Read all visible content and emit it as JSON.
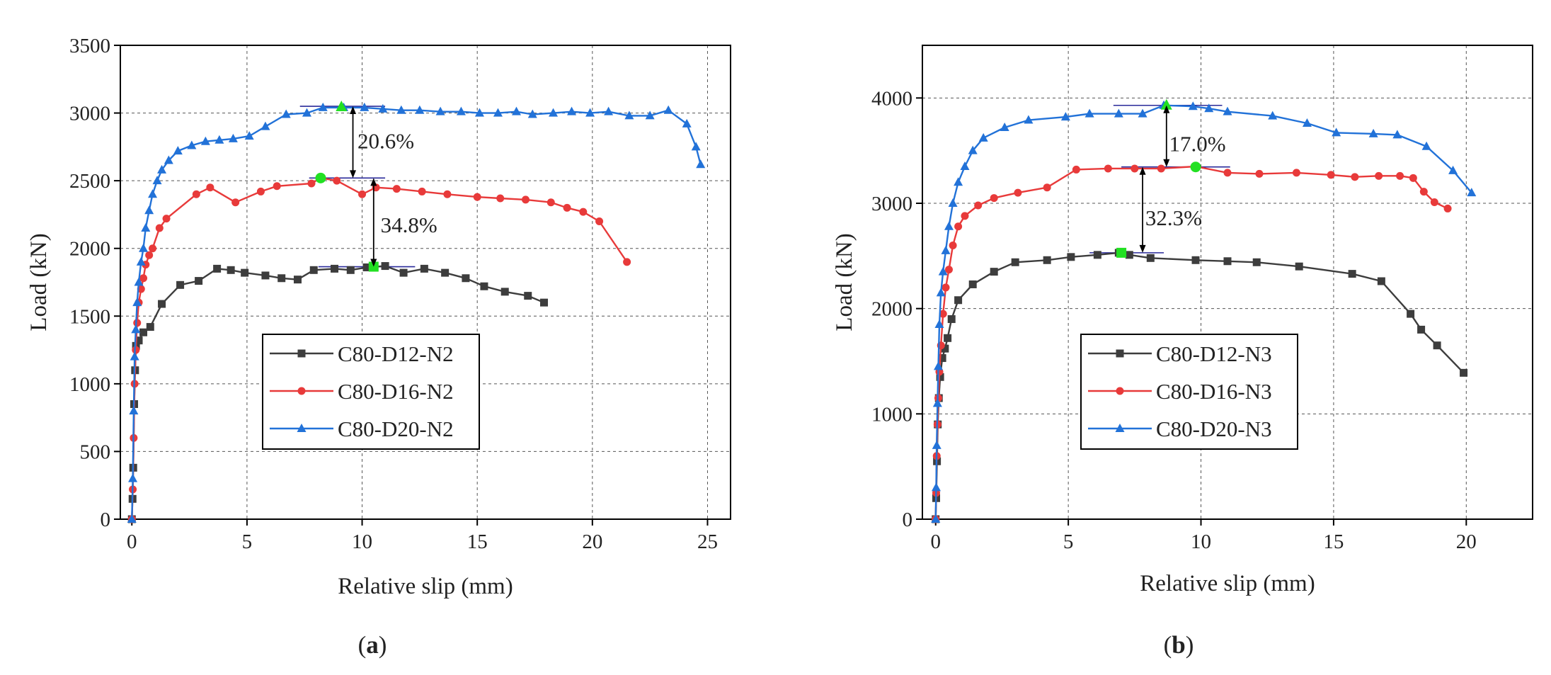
{
  "chart_data": [
    {
      "type": "line",
      "panel_label": "a",
      "xlabel": "Relative slip (mm)",
      "ylabel": "Load (kN)",
      "xlim": [
        -0.5,
        26
      ],
      "ylim": [
        0,
        3500
      ],
      "xticks": [
        0,
        5,
        10,
        15,
        20,
        25
      ],
      "yticks": [
        0,
        500,
        1000,
        1500,
        2000,
        2500,
        3000,
        3500
      ],
      "grid": true,
      "legend_position": "center-left",
      "series": [
        {
          "name": "C80-D12-N2",
          "color": "#3d3d3d",
          "marker": "square",
          "x": [
            0,
            0.03,
            0.06,
            0.1,
            0.14,
            0.18,
            0.3,
            0.5,
            0.8,
            1.3,
            2.1,
            2.9,
            3.7,
            4.3,
            4.9,
            5.8,
            6.5,
            7.2,
            7.9,
            8.8,
            9.5,
            10.2,
            11,
            11.8,
            12.7,
            13.6,
            14.5,
            15.3,
            16.2,
            17.2,
            17.9
          ],
          "y": [
            0,
            150,
            380,
            850,
            1100,
            1280,
            1320,
            1380,
            1420,
            1590,
            1730,
            1760,
            1850,
            1840,
            1820,
            1800,
            1780,
            1770,
            1840,
            1850,
            1840,
            1860,
            1870,
            1820,
            1850,
            1820,
            1780,
            1720,
            1680,
            1650,
            1600
          ]
        },
        {
          "name": "C80-D16-N2",
          "color": "#e83a3a",
          "marker": "circle",
          "x": [
            0,
            0.04,
            0.08,
            0.12,
            0.17,
            0.23,
            0.3,
            0.4,
            0.5,
            0.6,
            0.75,
            0.9,
            1.2,
            1.5,
            2.8,
            3.4,
            4.5,
            5.6,
            6.3,
            7.8,
            8.2,
            8.9,
            10,
            10.6,
            11.5,
            12.6,
            13.7,
            15,
            16,
            17.1,
            18.2,
            18.9,
            19.6,
            20.3,
            21.5
          ],
          "y": [
            0,
            220,
            600,
            1000,
            1250,
            1450,
            1600,
            1700,
            1780,
            1880,
            1950,
            2000,
            2150,
            2220,
            2400,
            2450,
            2340,
            2420,
            2460,
            2480,
            2520,
            2500,
            2400,
            2450,
            2440,
            2420,
            2400,
            2380,
            2370,
            2360,
            2340,
            2300,
            2270,
            2200,
            1900
          ]
        },
        {
          "name": "C80-D20-N2",
          "color": "#2272d8",
          "marker": "triangle",
          "x": [
            0,
            0.04,
            0.08,
            0.12,
            0.17,
            0.23,
            0.3,
            0.4,
            0.5,
            0.6,
            0.75,
            0.9,
            1.1,
            1.3,
            1.6,
            2,
            2.6,
            3.2,
            3.8,
            4.4,
            5.1,
            5.8,
            6.7,
            7.6,
            8.3,
            9.2,
            10.1,
            10.9,
            11.7,
            12.5,
            13.4,
            14.3,
            15.1,
            15.9,
            16.7,
            17.4,
            18.3,
            19.1,
            19.9,
            20.7,
            21.6,
            22.5,
            23.3,
            24.1,
            24.5,
            24.7
          ],
          "y": [
            0,
            300,
            800,
            1200,
            1400,
            1600,
            1750,
            1900,
            2000,
            2150,
            2280,
            2400,
            2500,
            2580,
            2650,
            2720,
            2760,
            2790,
            2800,
            2810,
            2830,
            2900,
            2990,
            3000,
            3040,
            3040,
            3040,
            3030,
            3020,
            3020,
            3010,
            3010,
            3000,
            3000,
            3010,
            2990,
            3000,
            3010,
            3000,
            3010,
            2980,
            2980,
            3020,
            2920,
            2750,
            2620
          ]
        }
      ],
      "highlight_points": [
        {
          "series": "C80-D20-N2",
          "x": 9.1,
          "y": 3045
        },
        {
          "series": "C80-D16-N2",
          "x": 8.2,
          "y": 2520
        },
        {
          "series": "C80-D12-N2",
          "x": 10.5,
          "y": 1865
        }
      ],
      "reference_lines": [
        {
          "y": 3050,
          "x_from": 7.3,
          "x_to": 11.0
        },
        {
          "y": 2520,
          "x_from": 7.7,
          "x_to": 11.0
        },
        {
          "y": 1865,
          "x_from": 8.1,
          "x_to": 12.3
        }
      ],
      "annotations": [
        {
          "text": "20.6%",
          "arrow_x": 9.6,
          "y_top": 3050,
          "y_bottom": 2520,
          "label_x": 9.8,
          "label_y": 2790
        },
        {
          "text": "34.8%",
          "arrow_x": 10.5,
          "y_top": 2520,
          "y_bottom": 1865,
          "label_x": 10.8,
          "label_y": 2170
        }
      ]
    },
    {
      "type": "line",
      "panel_label": "b",
      "xlabel": "Relative slip (mm)",
      "ylabel": "Load (kN)",
      "xlim": [
        -0.5,
        22.5
      ],
      "ylim": [
        0,
        4500
      ],
      "xticks": [
        0,
        5,
        10,
        15,
        20
      ],
      "yticks": [
        0,
        1000,
        2000,
        3000,
        4000
      ],
      "grid": true,
      "legend_position": "center-right",
      "series": [
        {
          "name": "C80-D12-N3",
          "color": "#3d3d3d",
          "marker": "square",
          "x": [
            0,
            0.02,
            0.05,
            0.08,
            0.12,
            0.17,
            0.25,
            0.35,
            0.45,
            0.6,
            0.85,
            1.4,
            2.2,
            3,
            4.2,
            5.1,
            6.1,
            6.9,
            7.3,
            8.1,
            9.8,
            11,
            12.1,
            13.7,
            15.7,
            16.8,
            17.9,
            18.3,
            18.9,
            19.9
          ],
          "y": [
            0,
            200,
            550,
            900,
            1150,
            1350,
            1530,
            1620,
            1720,
            1900,
            2080,
            2230,
            2350,
            2440,
            2460,
            2490,
            2510,
            2530,
            2510,
            2480,
            2460,
            2450,
            2440,
            2400,
            2330,
            2260,
            1950,
            1800,
            1650,
            1390
          ]
        },
        {
          "name": "C80-D16-N3",
          "color": "#e83a3a",
          "marker": "circle",
          "x": [
            0,
            0.02,
            0.04,
            0.07,
            0.1,
            0.14,
            0.2,
            0.28,
            0.38,
            0.5,
            0.65,
            0.85,
            1.1,
            1.6,
            2.2,
            3.1,
            4.2,
            5.3,
            6.5,
            7.5,
            8.5,
            9.8,
            11,
            12.2,
            13.6,
            14.9,
            15.8,
            16.7,
            17.5,
            18,
            18.4,
            18.8,
            19.3
          ],
          "y": [
            0,
            250,
            600,
            900,
            1150,
            1400,
            1650,
            1950,
            2200,
            2370,
            2600,
            2780,
            2880,
            2980,
            3050,
            3100,
            3150,
            3320,
            3330,
            3330,
            3330,
            3350,
            3290,
            3280,
            3290,
            3270,
            3250,
            3260,
            3260,
            3240,
            3110,
            3010,
            2950
          ]
        },
        {
          "name": "C80-D20-N3",
          "color": "#2272d8",
          "marker": "triangle",
          "x": [
            0,
            0.02,
            0.04,
            0.07,
            0.1,
            0.14,
            0.2,
            0.28,
            0.38,
            0.5,
            0.65,
            0.85,
            1.1,
            1.4,
            1.8,
            2.6,
            3.5,
            4.9,
            5.8,
            6.9,
            7.8,
            8.6,
            9.7,
            10.3,
            11,
            12.7,
            14,
            15.1,
            16.5,
            17.4,
            18.5,
            19.5,
            20.2
          ],
          "y": [
            0,
            300,
            700,
            1100,
            1450,
            1850,
            2150,
            2350,
            2550,
            2780,
            3000,
            3200,
            3350,
            3500,
            3620,
            3720,
            3790,
            3820,
            3850,
            3850,
            3850,
            3930,
            3920,
            3900,
            3870,
            3830,
            3760,
            3670,
            3660,
            3650,
            3540,
            3310,
            3100
          ]
        }
      ],
      "highlight_points": [
        {
          "series": "C80-D20-N3",
          "x": 8.7,
          "y": 3930
        },
        {
          "series": "C80-D16-N3",
          "x": 9.8,
          "y": 3345
        },
        {
          "series": "C80-D12-N3",
          "x": 7.0,
          "y": 2530
        }
      ],
      "reference_lines": [
        {
          "y": 3930,
          "x_from": 6.7,
          "x_to": 10.8
        },
        {
          "y": 3345,
          "x_from": 7.0,
          "x_to": 11.1
        },
        {
          "y": 2530,
          "x_from": 5.8,
          "x_to": 8.6
        }
      ],
      "annotations": [
        {
          "text": "17.0%",
          "arrow_x": 8.7,
          "y_top": 3930,
          "y_bottom": 3345,
          "label_x": 8.8,
          "label_y": 3560
        },
        {
          "text": "32.3%",
          "arrow_x": 7.8,
          "y_top": 3345,
          "y_bottom": 2530,
          "label_x": 7.9,
          "label_y": 2860
        }
      ]
    }
  ]
}
